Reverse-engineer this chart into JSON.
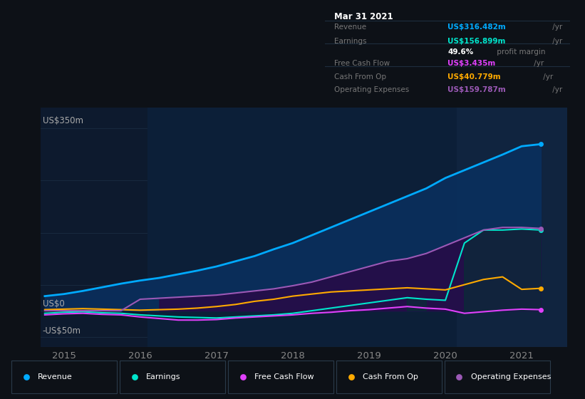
{
  "bg_color": "#0d1117",
  "plot_bg_color": "#0d1a2e",
  "grid_color": "#1a2d42",
  "ylabel_top": "US$350m",
  "ylabel_zero": "US$0",
  "ylabel_neg": "-US$50m",
  "ylim": [
    -70,
    390
  ],
  "xlim": [
    2014.7,
    2021.6
  ],
  "xticks": [
    2015,
    2016,
    2017,
    2018,
    2019,
    2020,
    2021
  ],
  "series_colors": {
    "revenue": "#00aaff",
    "earnings": "#00e5cc",
    "free_cash_flow": "#e040fb",
    "cash_from_op": "#ffaa00",
    "operating_expenses": "#9b59b6"
  },
  "x": [
    2014.75,
    2015.0,
    2015.25,
    2015.5,
    2015.75,
    2016.0,
    2016.25,
    2016.5,
    2016.75,
    2017.0,
    2017.25,
    2017.5,
    2017.75,
    2018.0,
    2018.25,
    2018.5,
    2018.75,
    2019.0,
    2019.25,
    2019.5,
    2019.75,
    2020.0,
    2020.25,
    2020.5,
    2020.75,
    2021.0,
    2021.25
  ],
  "revenue": [
    28,
    32,
    38,
    45,
    52,
    58,
    63,
    70,
    77,
    85,
    95,
    105,
    118,
    130,
    145,
    160,
    175,
    190,
    205,
    220,
    235,
    255,
    270,
    285,
    300,
    316,
    320
  ],
  "earnings": [
    -5,
    -3,
    -2,
    -4,
    -5,
    -8,
    -10,
    -12,
    -13,
    -14,
    -12,
    -10,
    -8,
    -5,
    0,
    5,
    10,
    15,
    20,
    25,
    22,
    20,
    130,
    155,
    155,
    157,
    155
  ],
  "free_cash_flow": [
    -8,
    -6,
    -5,
    -7,
    -8,
    -12,
    -15,
    -18,
    -18,
    -17,
    -14,
    -12,
    -10,
    -8,
    -5,
    -3,
    0,
    2,
    5,
    8,
    5,
    3,
    -5,
    -2,
    1,
    3,
    2
  ],
  "cash_from_op": [
    2,
    3,
    4,
    3,
    2,
    1,
    2,
    3,
    5,
    8,
    12,
    18,
    22,
    28,
    32,
    36,
    38,
    40,
    42,
    44,
    42,
    40,
    50,
    60,
    65,
    41,
    43
  ],
  "operating_expenses": [
    0,
    0,
    0,
    0,
    0,
    22,
    24,
    26,
    28,
    30,
    34,
    38,
    42,
    48,
    55,
    65,
    75,
    85,
    95,
    100,
    110,
    125,
    140,
    155,
    160,
    160,
    158
  ],
  "highlight1_start": 2016.1,
  "highlight1_end": 2020.15,
  "highlight2_start": 2020.15,
  "highlight2_end": 2021.6,
  "info_box": {
    "title": "Mar 31 2021",
    "rows": [
      {
        "label": "Revenue",
        "value": "US$316.482m",
        "unit": " /yr",
        "value_color": "#00aaff",
        "sep_after": false
      },
      {
        "label": "Earnings",
        "value": "US$156.899m",
        "unit": " /yr",
        "value_color": "#00e5cc",
        "sep_after": false
      },
      {
        "label": "",
        "value": "49.6%",
        "unit": " profit margin",
        "value_color": "#ffffff",
        "sep_after": true
      },
      {
        "label": "Free Cash Flow",
        "value": "US$3.435m",
        "unit": " /yr",
        "value_color": "#e040fb",
        "sep_after": false
      },
      {
        "label": "Cash From Op",
        "value": "US$40.779m",
        "unit": " /yr",
        "value_color": "#ffaa00",
        "sep_after": false
      },
      {
        "label": "Operating Expenses",
        "value": "US$159.787m",
        "unit": " /yr",
        "value_color": "#9b59b6",
        "sep_after": false
      }
    ]
  },
  "legend_items": [
    {
      "label": "Revenue",
      "color": "#00aaff"
    },
    {
      "label": "Earnings",
      "color": "#00e5cc"
    },
    {
      "label": "Free Cash Flow",
      "color": "#e040fb"
    },
    {
      "label": "Cash From Op",
      "color": "#ffaa00"
    },
    {
      "label": "Operating Expenses",
      "color": "#9b59b6"
    }
  ]
}
